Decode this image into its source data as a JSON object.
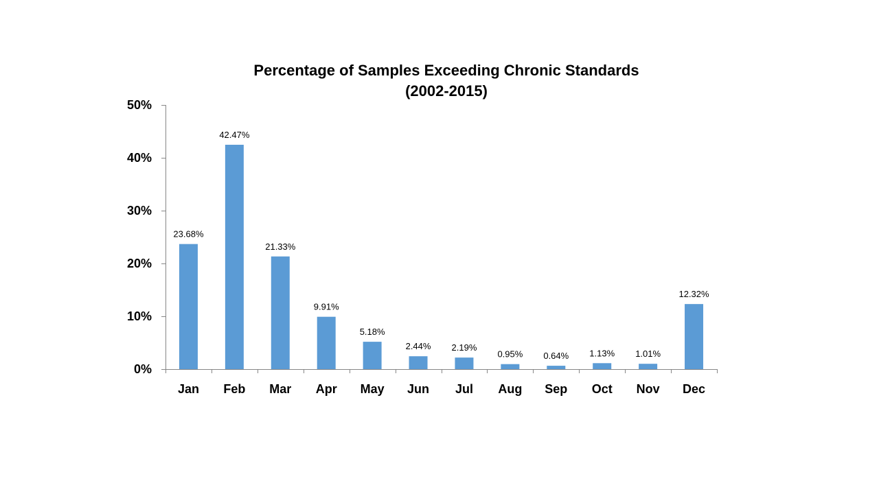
{
  "chart_data": {
    "type": "bar",
    "title_line1": "Percentage of Samples Exceeding Chronic Standards",
    "title_line2": "(2002-2015)",
    "categories": [
      "Jan",
      "Feb",
      "Mar",
      "Apr",
      "May",
      "Jun",
      "Jul",
      "Aug",
      "Sep",
      "Oct",
      "Nov",
      "Dec"
    ],
    "values": [
      23.68,
      42.47,
      21.33,
      9.91,
      5.18,
      2.44,
      2.19,
      0.95,
      0.64,
      1.13,
      1.01,
      12.32
    ],
    "data_labels": [
      "23.68%",
      "42.47%",
      "21.33%",
      "9.91%",
      "5.18%",
      "2.44%",
      "2.19%",
      "0.95%",
      "0.64%",
      "1.13%",
      "1.01%",
      "12.32%"
    ],
    "ylim": [
      0,
      50
    ],
    "yticks": [
      0,
      10,
      20,
      30,
      40,
      50
    ],
    "ytick_labels": [
      "0%",
      "10%",
      "20%",
      "30%",
      "40%",
      "50%"
    ],
    "xlabel": "",
    "ylabel": "",
    "grid": false,
    "legend": "none",
    "bar_color": "#5B9BD5"
  }
}
